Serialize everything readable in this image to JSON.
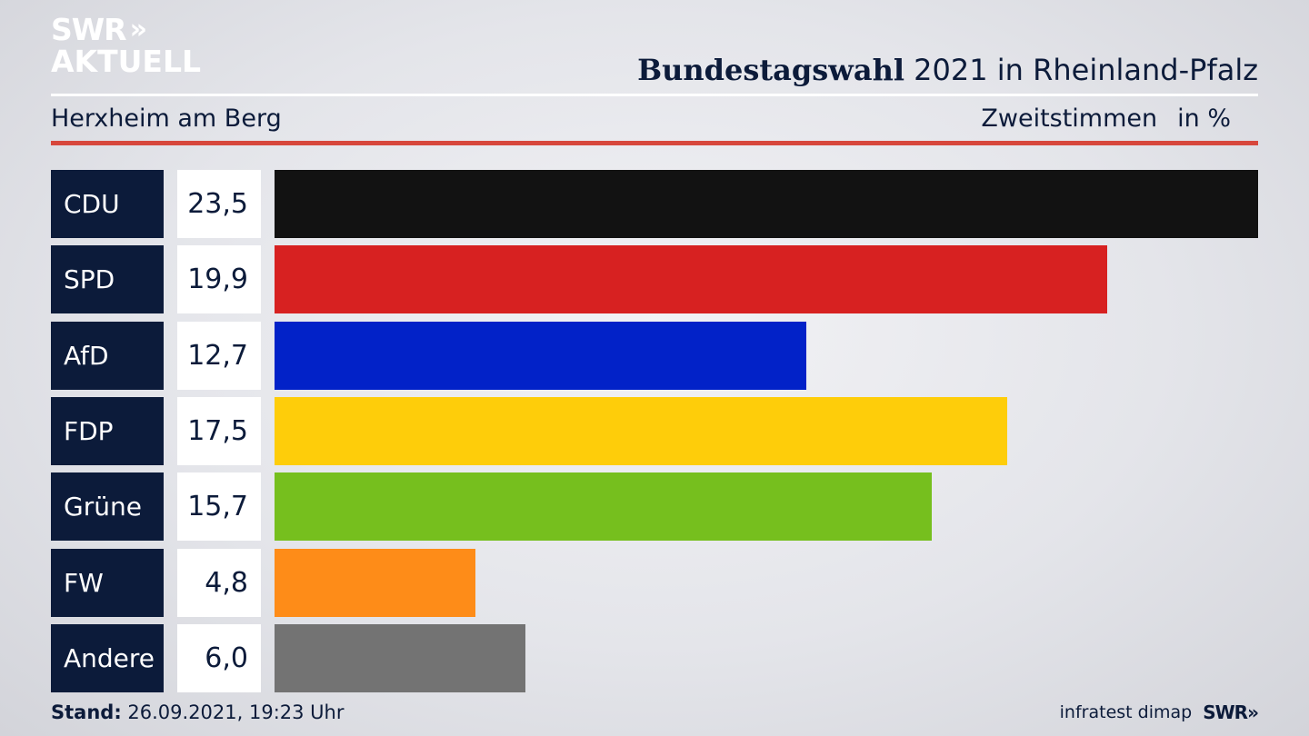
{
  "logo": {
    "line1": "SWR",
    "chevrons": "»",
    "line2": "AKTUELL"
  },
  "header": {
    "title_bold": "Bundestagswahl",
    "title_rest": " 2021 in Rheinland-Pfalz",
    "subtitle": "Herxheim am Berg",
    "measure": "Zweitstimmen",
    "unit": "in %"
  },
  "chart_data": {
    "type": "bar",
    "orientation": "horizontal",
    "categories": [
      "CDU",
      "SPD",
      "AfD",
      "FDP",
      "Grüne",
      "FW",
      "Andere"
    ],
    "values": [
      23.5,
      19.9,
      12.7,
      17.5,
      15.7,
      4.8,
      6.0
    ],
    "value_labels": [
      "23,5",
      "19,9",
      "12,7",
      "17,5",
      "15,7",
      "4,8",
      "6,0"
    ],
    "colors": [
      "#121212",
      "#d72121",
      "#0222c8",
      "#fecd0a",
      "#76bf1e",
      "#fe8c18",
      "#737373"
    ],
    "xmax": 23.5,
    "grid": false,
    "legend": "none"
  },
  "footer": {
    "stand_label": "Stand:",
    "stand_value": " 26.09.2021, 19:23 Uhr",
    "source": "infratest dimap",
    "brand": "SWR",
    "brand_chevrons": "»"
  }
}
